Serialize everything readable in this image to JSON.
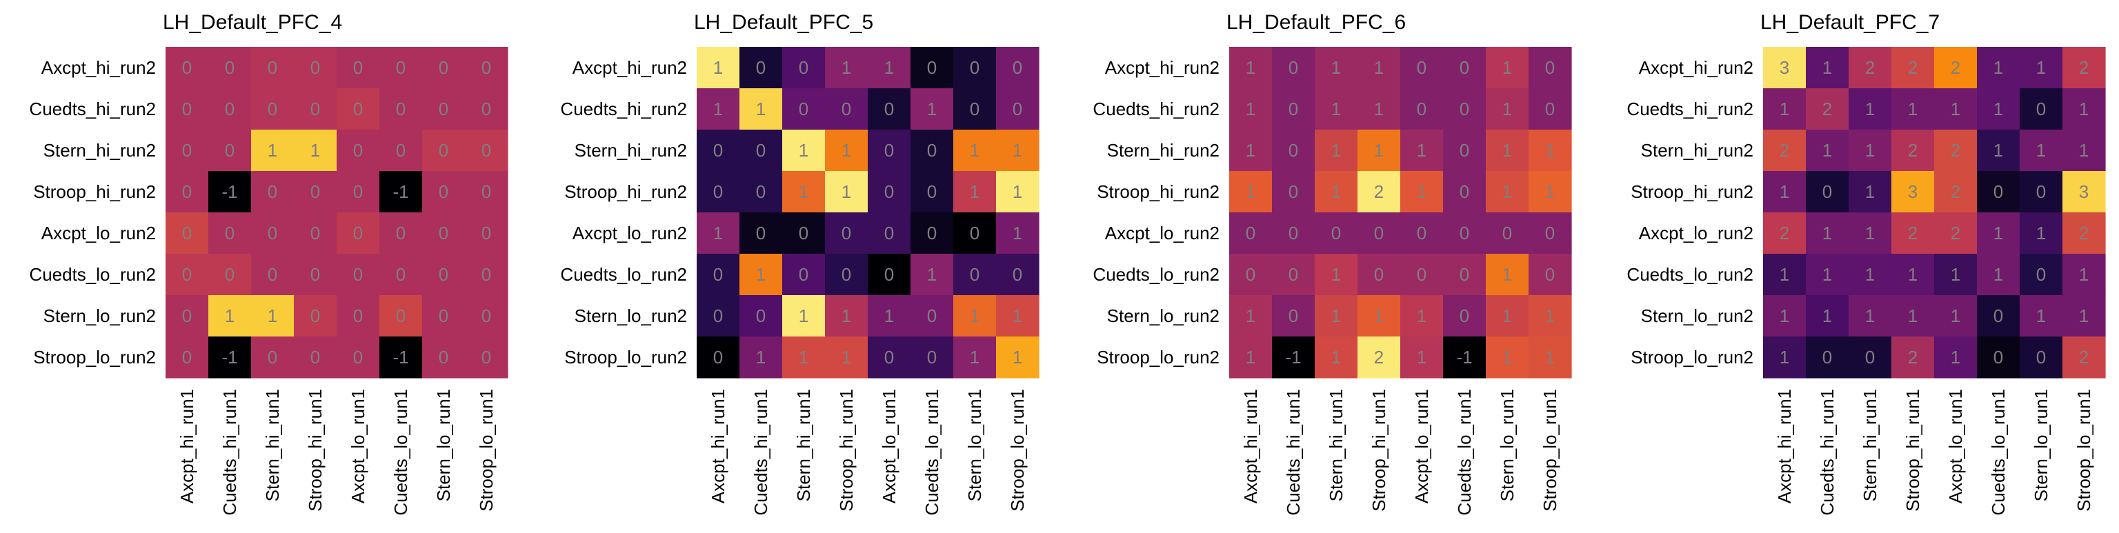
{
  "figure": {
    "rows": [
      "Axcpt_hi_run2",
      "Cuedts_hi_run2",
      "Stern_hi_run2",
      "Stroop_hi_run2",
      "Axcpt_lo_run2",
      "Cuedts_lo_run2",
      "Stern_lo_run2",
      "Stroop_lo_run2"
    ],
    "cols": [
      "Axcpt_hi_run1",
      "Cuedts_hi_run1",
      "Stern_hi_run1",
      "Stroop_hi_run1",
      "Axcpt_lo_run1",
      "Cuedts_lo_run1",
      "Stern_lo_run1",
      "Stroop_lo_run1"
    ],
    "colormap": "inferno",
    "label_color": "#7f7f7f"
  },
  "chart_data": [
    {
      "type": "heatmap",
      "title": "LH_Default_PFC_4",
      "labels": [
        [
          "0",
          "0",
          "0",
          "0",
          "0",
          "0",
          "0",
          "0"
        ],
        [
          "0",
          "0",
          "0",
          "0",
          "0",
          "0",
          "0",
          "0"
        ],
        [
          "0",
          "0",
          "1",
          "1",
          "0",
          "0",
          "0",
          "0"
        ],
        [
          "0",
          "-1",
          "0",
          "0",
          "0",
          "-1",
          "0",
          "0"
        ],
        [
          "0",
          "0",
          "0",
          "0",
          "0",
          "0",
          "0",
          "0"
        ],
        [
          "0",
          "0",
          "0",
          "0",
          "0",
          "0",
          "0",
          "0"
        ],
        [
          "0",
          "1",
          "1",
          "0",
          "0",
          "0",
          "0",
          "0"
        ],
        [
          "0",
          "-1",
          "0",
          "0",
          "0",
          "-1",
          "0",
          "0"
        ]
      ],
      "values": [
        [
          0.05,
          0.05,
          0.1,
          0.1,
          0.05,
          0.05,
          0.05,
          0.05
        ],
        [
          0.05,
          0.05,
          0.1,
          0.1,
          0.15,
          0.05,
          0.05,
          0.05
        ],
        [
          0.05,
          0.05,
          1.0,
          1.0,
          0.05,
          0.05,
          0.15,
          0.15
        ],
        [
          0.05,
          -1.0,
          0.05,
          0.05,
          0.05,
          -1.0,
          0.05,
          0.05
        ],
        [
          0.25,
          0.05,
          0.05,
          0.05,
          0.15,
          0.05,
          0.05,
          0.05
        ],
        [
          0.15,
          0.15,
          0.05,
          0.05,
          0.05,
          0.05,
          0.05,
          0.05
        ],
        [
          0.05,
          1.0,
          1.0,
          0.15,
          0.05,
          0.25,
          0.05,
          0.05
        ],
        [
          0.05,
          -1.0,
          0.05,
          0.05,
          0.05,
          -1.0,
          0.05,
          0.05
        ]
      ],
      "vmin": -1.0,
      "vmax": 1.25
    },
    {
      "type": "heatmap",
      "title": "LH_Default_PFC_5",
      "labels": [
        [
          "1",
          "0",
          "0",
          "1",
          "1",
          "0",
          "0",
          "0"
        ],
        [
          "1",
          "1",
          "0",
          "0",
          "0",
          "1",
          "0",
          "0"
        ],
        [
          "0",
          "0",
          "1",
          "1",
          "0",
          "0",
          "1",
          "1"
        ],
        [
          "0",
          "0",
          "1",
          "1",
          "0",
          "0",
          "1",
          "1"
        ],
        [
          "1",
          "0",
          "0",
          "0",
          "0",
          "0",
          "0",
          "1"
        ],
        [
          "0",
          "1",
          "0",
          "0",
          "0",
          "1",
          "0",
          "0"
        ],
        [
          "0",
          "0",
          "1",
          "1",
          "1",
          "0",
          "1",
          "1"
        ],
        [
          "0",
          "1",
          "1",
          "1",
          "0",
          "0",
          "1",
          "1"
        ]
      ],
      "values": [
        [
          1.0,
          0.1,
          0.25,
          0.4,
          0.4,
          0.05,
          0.1,
          0.35
        ],
        [
          0.4,
          0.95,
          0.3,
          0.3,
          0.1,
          0.4,
          0.1,
          0.35
        ],
        [
          0.15,
          0.15,
          1.0,
          0.75,
          0.2,
          0.1,
          0.75,
          0.75
        ],
        [
          0.15,
          0.15,
          0.7,
          1.0,
          0.2,
          0.1,
          0.55,
          1.0
        ],
        [
          0.4,
          0.05,
          0.05,
          0.2,
          0.2,
          0.05,
          0.0,
          0.35
        ],
        [
          0.15,
          0.75,
          0.25,
          0.15,
          0.0,
          0.4,
          0.2,
          0.2
        ],
        [
          0.15,
          0.25,
          1.0,
          0.5,
          0.35,
          0.35,
          0.7,
          0.6
        ],
        [
          0.0,
          0.35,
          0.6,
          0.6,
          0.2,
          0.2,
          0.4,
          0.85
        ]
      ],
      "vmin": 0.0,
      "vmax": 1.05
    },
    {
      "type": "heatmap",
      "title": "LH_Default_PFC_6",
      "labels": [
        [
          "1",
          "0",
          "1",
          "1",
          "0",
          "0",
          "1",
          "0"
        ],
        [
          "1",
          "0",
          "1",
          "1",
          "0",
          "0",
          "1",
          "0"
        ],
        [
          "1",
          "0",
          "1",
          "1",
          "1",
          "0",
          "1",
          "1"
        ],
        [
          "1",
          "0",
          "1",
          "2",
          "1",
          "0",
          "1",
          "1"
        ],
        [
          "0",
          "0",
          "0",
          "0",
          "0",
          "0",
          "0",
          "0"
        ],
        [
          "0",
          "0",
          "1",
          "0",
          "0",
          "0",
          "1",
          "0"
        ],
        [
          "1",
          "0",
          "1",
          "1",
          "1",
          "0",
          "1",
          "1"
        ],
        [
          "1",
          "-1",
          "1",
          "2",
          "1",
          "-1",
          "1",
          "1"
        ]
      ],
      "values": [
        [
          0.35,
          0.15,
          0.35,
          0.35,
          0.15,
          0.15,
          0.55,
          0.15
        ],
        [
          0.35,
          0.15,
          0.35,
          0.35,
          0.15,
          0.15,
          0.45,
          0.15
        ],
        [
          0.35,
          0.15,
          0.75,
          1.2,
          0.35,
          0.15,
          0.75,
          0.95
        ],
        [
          1.0,
          0.15,
          0.9,
          2.0,
          0.95,
          0.15,
          0.85,
          1.05
        ],
        [
          0.15,
          0.15,
          0.15,
          0.15,
          0.15,
          0.15,
          0.15,
          0.15
        ],
        [
          0.35,
          0.35,
          0.6,
          0.35,
          0.35,
          0.35,
          1.2,
          0.35
        ],
        [
          0.45,
          0.15,
          0.75,
          1.0,
          0.6,
          0.15,
          0.75,
          0.85
        ],
        [
          0.45,
          -1.0,
          0.8,
          2.0,
          0.55,
          -1.0,
          0.95,
          0.9
        ]
      ],
      "vmin": -1.0,
      "vmax": 2.15
    },
    {
      "type": "heatmap",
      "title": "LH_Default_PFC_7",
      "labels": [
        [
          "3",
          "1",
          "2",
          "2",
          "2",
          "1",
          "1",
          "2"
        ],
        [
          "1",
          "2",
          "1",
          "1",
          "1",
          "1",
          "0",
          "1"
        ],
        [
          "2",
          "1",
          "1",
          "2",
          "2",
          "1",
          "1",
          "1"
        ],
        [
          "1",
          "0",
          "1",
          "3",
          "2",
          "0",
          "0",
          "3"
        ],
        [
          "2",
          "1",
          "1",
          "2",
          "2",
          "1",
          "1",
          "2"
        ],
        [
          "1",
          "1",
          "1",
          "1",
          "1",
          "1",
          "0",
          "1"
        ],
        [
          "1",
          "1",
          "1",
          "1",
          "1",
          "0",
          "1",
          "1"
        ],
        [
          "1",
          "0",
          "0",
          "2",
          "1",
          "0",
          "0",
          "2"
        ]
      ],
      "values": [
        [
          2.9,
          0.85,
          1.5,
          1.75,
          2.3,
          0.85,
          0.85,
          1.6
        ],
        [
          1.1,
          1.4,
          0.85,
          1.0,
          1.0,
          0.85,
          0.3,
          1.0
        ],
        [
          1.8,
          1.0,
          1.1,
          1.5,
          1.8,
          0.5,
          1.0,
          1.0
        ],
        [
          1.0,
          0.3,
          0.6,
          2.5,
          1.8,
          0.2,
          0.3,
          2.8
        ],
        [
          1.6,
          1.0,
          1.0,
          1.6,
          1.6,
          1.0,
          0.6,
          1.8
        ],
        [
          0.6,
          0.85,
          0.85,
          0.85,
          0.6,
          1.0,
          0.4,
          1.0
        ],
        [
          1.0,
          0.7,
          1.0,
          1.0,
          1.0,
          0.3,
          1.0,
          1.0
        ],
        [
          0.6,
          0.3,
          0.3,
          1.4,
          0.85,
          0.1,
          0.3,
          1.7
        ]
      ],
      "vmin": 0.0,
      "vmax": 3.1
    }
  ]
}
